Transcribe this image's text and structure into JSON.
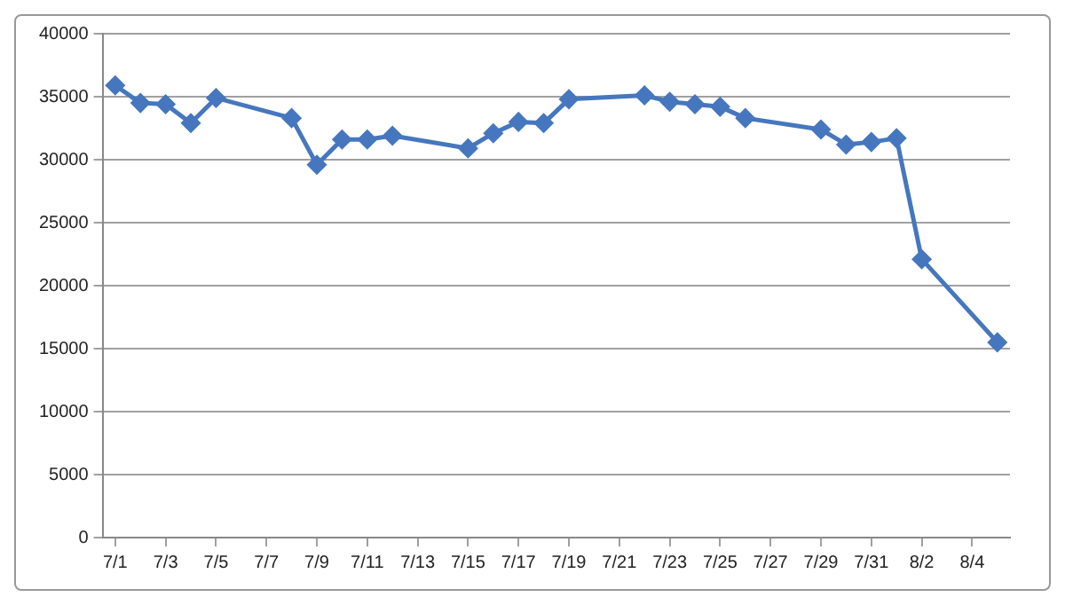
{
  "chart_data": {
    "type": "line",
    "x": [
      "--07-01",
      "--07-02",
      "--07-03",
      "--07-04",
      "--07-05",
      "--07-08",
      "--07-09",
      "--07-10",
      "--07-11",
      "--07-12",
      "--07-15",
      "--07-16",
      "--07-17",
      "--07-18",
      "--07-19",
      "--07-22",
      "--07-23",
      "--07-24",
      "--07-25",
      "--07-26",
      "--07-29",
      "--07-30",
      "--07-31",
      "--08-01",
      "--08-02",
      "--08-05"
    ],
    "series": [
      {
        "color": "#4677be",
        "values": [
          35900,
          34500,
          34400,
          32900,
          34900,
          33300,
          29600,
          31600,
          31600,
          31900,
          30900,
          32100,
          33000,
          32900,
          34800,
          35100,
          34600,
          34400,
          34200,
          33300,
          32400,
          31200,
          31400,
          31700,
          22100,
          15500
        ]
      }
    ],
    "xlim": [
      "--06-30T12:00",
      "--08-05T12:00"
    ],
    "xticks": [
      {
        "value": "--07-01",
        "label": "7/1"
      },
      {
        "value": "--07-03",
        "label": "7/3"
      },
      {
        "value": "--07-05",
        "label": "7/5"
      },
      {
        "value": "--07-07",
        "label": "7/7"
      },
      {
        "value": "--07-09",
        "label": "7/9"
      },
      {
        "value": "--07-11",
        "label": "7/11"
      },
      {
        "value": "--07-13",
        "label": "7/13"
      },
      {
        "value": "--07-15",
        "label": "7/15"
      },
      {
        "value": "--07-17",
        "label": "7/17"
      },
      {
        "value": "--07-19",
        "label": "7/19"
      },
      {
        "value": "--07-21",
        "label": "7/21"
      },
      {
        "value": "--07-23",
        "label": "7/23"
      },
      {
        "value": "--07-25",
        "label": "7/25"
      },
      {
        "value": "--07-27",
        "label": "7/27"
      },
      {
        "value": "--07-29",
        "label": "7/29"
      },
      {
        "value": "--07-31",
        "label": "7/31"
      },
      {
        "value": "--08-02",
        "label": "8/2"
      },
      {
        "value": "--08-04",
        "label": "8/4"
      }
    ],
    "ylim": [
      0,
      40000
    ],
    "yticks": [
      0,
      5000,
      10000,
      15000,
      20000,
      25000,
      30000,
      35000,
      40000
    ],
    "grid": "y",
    "legend": false,
    "marker": "diamond",
    "line_style": "solid"
  }
}
